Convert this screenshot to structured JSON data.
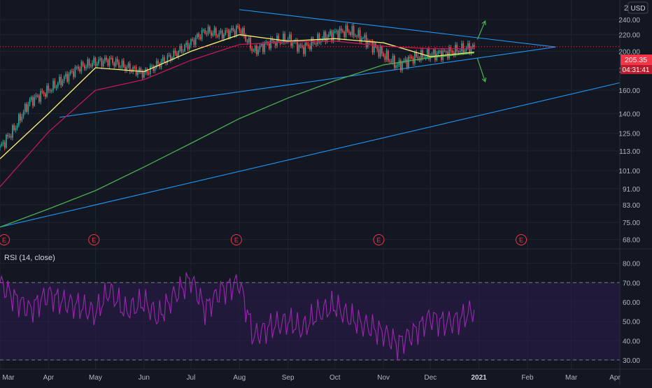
{
  "currency": "USD",
  "price_axis_top_label": "2",
  "last_price_label": "205.35",
  "countdown_label": "04:31:41",
  "earnings_marker_label": "E",
  "rsi_label": "RSI (14, close)",
  "colors": {
    "background": "#131722",
    "grid": "#1f2430",
    "axis_text": "#b2b5be",
    "up_candle": "#26a69a",
    "down_candle": "#ef5350",
    "ma_fast": "#fff176",
    "ma_mid": "#c2185b",
    "ma_slow": "#4caf50",
    "trendline": "#2196f3",
    "arrow": "#4caf50",
    "rsi_line": "#9c27b0",
    "rsi_band": "#2d1b4e",
    "price_badge": "#f23645"
  },
  "icons": [
    "arrow-up-right-icon",
    "arrow-down-right-icon",
    "earnings-marker-icon"
  ],
  "chart_data": [
    {
      "type": "candlestick",
      "title": "",
      "y_scale": "log",
      "ylim": [
        66,
        262
      ],
      "y_ticks": [
        "240.00",
        "220.00",
        "200.00",
        "180.00",
        "160.00",
        "140.00",
        "125.00",
        "113.00",
        "101.00",
        "91.00",
        "83.00",
        "75.00",
        "68.00"
      ],
      "y_tick_values": [
        240,
        220,
        200,
        180,
        160,
        140,
        125,
        113,
        101,
        91,
        83,
        75,
        68
      ],
      "x_ticks": [
        "Mar",
        "Apr",
        "May",
        "Jun",
        "Jul",
        "Aug",
        "Sep",
        "Oct",
        "Nov",
        "Dec",
        "2021",
        "Feb",
        "Mar",
        "Apr"
      ],
      "x_tick_dates": [
        "2020-03-01",
        "2020-04-01",
        "2020-05-01",
        "2020-06-01",
        "2020-07-01",
        "2020-08-01",
        "2020-09-01",
        "2020-10-01",
        "2020-11-01",
        "2020-12-01",
        "2021-01-01",
        "2021-02-01",
        "2021-03-01",
        "2021-04-01"
      ],
      "xlim": [
        "2020-03-01",
        "2021-04-01"
      ],
      "close_series": {
        "dates": [
          "2020-03-01",
          "2020-03-10",
          "2020-03-20",
          "2020-04-01",
          "2020-04-10",
          "2020-04-20",
          "2020-05-01",
          "2020-05-10",
          "2020-05-20",
          "2020-06-01",
          "2020-06-10",
          "2020-06-20",
          "2020-07-01",
          "2020-07-10",
          "2020-07-20",
          "2020-08-01",
          "2020-08-10",
          "2020-08-20",
          "2020-09-01",
          "2020-09-10",
          "2020-09-20",
          "2020-10-01",
          "2020-10-10",
          "2020-10-20",
          "2020-11-01",
          "2020-11-10",
          "2020-11-20",
          "2020-12-01",
          "2020-12-10",
          "2020-12-20",
          "2020-12-29"
        ],
        "values": [
          115,
          128,
          150,
          160,
          170,
          182,
          188,
          190,
          183,
          176,
          186,
          196,
          210,
          225,
          220,
          228,
          200,
          210,
          215,
          203,
          213,
          222,
          225,
          214,
          196,
          184,
          193,
          196,
          198,
          202,
          205.35
        ]
      },
      "series": [
        {
          "name": "MA fast",
          "dates": [
            "2020-03-01",
            "2020-04-01",
            "2020-05-01",
            "2020-06-01",
            "2020-07-01",
            "2020-08-01",
            "2020-09-01",
            "2020-10-01",
            "2020-11-01",
            "2020-12-01",
            "2020-12-29"
          ],
          "values": [
            108,
            140,
            182,
            178,
            200,
            220,
            212,
            215,
            210,
            194,
            199
          ]
        },
        {
          "name": "MA mid",
          "dates": [
            "2020-03-01",
            "2020-04-01",
            "2020-05-01",
            "2020-06-01",
            "2020-07-01",
            "2020-08-01",
            "2020-09-01",
            "2020-10-01",
            "2020-11-01",
            "2020-12-01",
            "2020-12-29"
          ],
          "values": [
            92,
            126,
            160,
            170,
            190,
            208,
            211,
            212,
            206,
            203,
            203
          ]
        },
        {
          "name": "MA slow",
          "dates": [
            "2020-03-01",
            "2020-04-01",
            "2020-05-01",
            "2020-06-01",
            "2020-07-01",
            "2020-08-01",
            "2020-09-01",
            "2020-10-01",
            "2020-11-01",
            "2020-12-01",
            "2020-12-29"
          ],
          "values": [
            73,
            81,
            90,
            103,
            118,
            136,
            153,
            169,
            185,
            193,
            198
          ]
        }
      ],
      "trendlines": [
        {
          "from": [
            "2020-04-08",
            137
          ],
          "to": [
            "2021-02-19",
            205
          ]
        },
        {
          "from": [
            "2020-08-01",
            254
          ],
          "to": [
            "2021-02-19",
            205
          ]
        },
        {
          "from": [
            "2020-03-01",
            73
          ],
          "to": [
            "2021-04-01",
            167
          ]
        }
      ],
      "last_price_line": 205.35,
      "breakout_arrows": [
        {
          "direction": "up",
          "from": [
            "2020-12-31",
            214
          ],
          "to": [
            "2021-01-05",
            238
          ]
        },
        {
          "direction": "down",
          "from": [
            "2020-12-31",
            192
          ],
          "to": [
            "2021-01-05",
            168
          ]
        }
      ],
      "earnings_dates": [
        "2020-03-01",
        "2020-04-30",
        "2020-07-30",
        "2020-10-29",
        "2021-01-28"
      ]
    },
    {
      "type": "line",
      "title": "",
      "ylim": [
        26,
        86
      ],
      "y_ticks": [
        "80.00",
        "70.00",
        "60.00",
        "50.00",
        "40.00",
        "30.00"
      ],
      "y_tick_values": [
        80,
        70,
        60,
        50,
        40,
        30
      ],
      "bands": [
        70,
        30
      ],
      "series": [
        {
          "name": "RSI",
          "dates": [
            "2020-03-01",
            "2020-03-10",
            "2020-03-20",
            "2020-04-01",
            "2020-04-10",
            "2020-04-20",
            "2020-05-01",
            "2020-05-10",
            "2020-05-20",
            "2020-06-01",
            "2020-06-10",
            "2020-06-20",
            "2020-07-01",
            "2020-07-10",
            "2020-07-20",
            "2020-08-01",
            "2020-08-10",
            "2020-08-20",
            "2020-09-01",
            "2020-09-10",
            "2020-09-20",
            "2020-10-01",
            "2020-10-10",
            "2020-10-20",
            "2020-11-01",
            "2020-11-10",
            "2020-11-20",
            "2020-12-01",
            "2020-12-10",
            "2020-12-20",
            "2020-12-29"
          ],
          "values": [
            70,
            62,
            56,
            64,
            60,
            58,
            54,
            66,
            55,
            60,
            52,
            63,
            72,
            56,
            66,
            70,
            42,
            47,
            50,
            46,
            54,
            58,
            52,
            48,
            44,
            38,
            44,
            52,
            49,
            51,
            56
          ]
        }
      ]
    }
  ]
}
